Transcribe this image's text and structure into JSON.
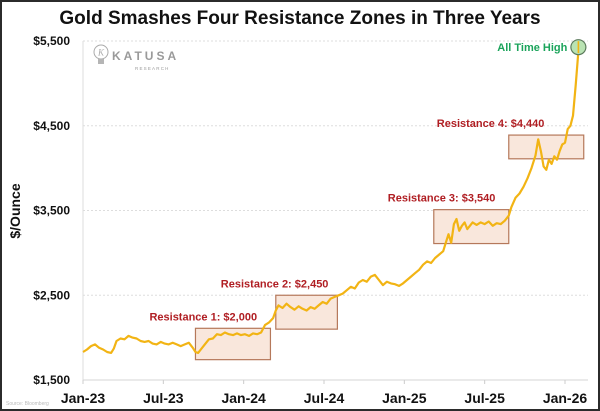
{
  "chart_data": {
    "type": "line",
    "title": "Gold Smashes Four Resistance Zones in Three Years",
    "xlabel": "",
    "ylabel": "$/Ounce",
    "ylim": [
      1500,
      5500
    ],
    "yticks": [
      {
        "value": 1500,
        "label": "$1,500"
      },
      {
        "value": 2500,
        "label": "$2,500"
      },
      {
        "value": 3500,
        "label": "$3,500"
      },
      {
        "value": 4500,
        "label": "$4,500"
      },
      {
        "value": 5500,
        "label": "$5,500"
      }
    ],
    "xlim_months": [
      0,
      37
    ],
    "xticks": [
      {
        "month": 0,
        "label": "Jan-23"
      },
      {
        "month": 6,
        "label": "Jul-23"
      },
      {
        "month": 12,
        "label": "Jan-24"
      },
      {
        "month": 18,
        "label": "Jul-24"
      },
      {
        "month": 24,
        "label": "Jan-25"
      },
      {
        "month": 30,
        "label": "Jul-25"
      },
      {
        "month": 36,
        "label": "Jan-26"
      }
    ],
    "grid": "horizontal-dashed",
    "legend": "none",
    "series": [
      {
        "name": "Gold price",
        "color": "#f2b414",
        "points": [
          [
            0.0,
            1830
          ],
          [
            0.3,
            1860
          ],
          [
            0.6,
            1900
          ],
          [
            0.9,
            1920
          ],
          [
            1.2,
            1880
          ],
          [
            1.5,
            1860
          ],
          [
            1.8,
            1830
          ],
          [
            2.1,
            1820
          ],
          [
            2.3,
            1870
          ],
          [
            2.5,
            1960
          ],
          [
            2.8,
            1990
          ],
          [
            3.1,
            1980
          ],
          [
            3.4,
            2020
          ],
          [
            3.7,
            2000
          ],
          [
            4.0,
            1990
          ],
          [
            4.3,
            1960
          ],
          [
            4.6,
            1950
          ],
          [
            4.9,
            1960
          ],
          [
            5.2,
            1930
          ],
          [
            5.5,
            1920
          ],
          [
            5.8,
            1950
          ],
          [
            6.1,
            1930
          ],
          [
            6.4,
            1920
          ],
          [
            6.7,
            1940
          ],
          [
            7.0,
            1920
          ],
          [
            7.3,
            1900
          ],
          [
            7.6,
            1920
          ],
          [
            7.9,
            1940
          ],
          [
            8.2,
            1880
          ],
          [
            8.4,
            1830
          ],
          [
            8.6,
            1820
          ],
          [
            8.8,
            1860
          ],
          [
            9.1,
            1920
          ],
          [
            9.4,
            1980
          ],
          [
            9.7,
            1990
          ],
          [
            10.0,
            2040
          ],
          [
            10.3,
            2030
          ],
          [
            10.6,
            2060
          ],
          [
            10.9,
            2040
          ],
          [
            11.2,
            2030
          ],
          [
            11.5,
            2050
          ],
          [
            11.8,
            2030
          ],
          [
            12.1,
            2040
          ],
          [
            12.4,
            2020
          ],
          [
            12.7,
            2050
          ],
          [
            13.0,
            2040
          ],
          [
            13.3,
            2060
          ],
          [
            13.6,
            2150
          ],
          [
            13.9,
            2180
          ],
          [
            14.2,
            2230
          ],
          [
            14.4,
            2320
          ],
          [
            14.6,
            2380
          ],
          [
            14.9,
            2350
          ],
          [
            15.2,
            2400
          ],
          [
            15.5,
            2360
          ],
          [
            15.8,
            2330
          ],
          [
            16.1,
            2370
          ],
          [
            16.4,
            2340
          ],
          [
            16.7,
            2320
          ],
          [
            17.0,
            2360
          ],
          [
            17.3,
            2340
          ],
          [
            17.6,
            2380
          ],
          [
            17.9,
            2420
          ],
          [
            18.2,
            2400
          ],
          [
            18.5,
            2460
          ],
          [
            18.8,
            2480
          ],
          [
            19.1,
            2500
          ],
          [
            19.4,
            2520
          ],
          [
            19.7,
            2560
          ],
          [
            20.0,
            2600
          ],
          [
            20.3,
            2580
          ],
          [
            20.6,
            2650
          ],
          [
            20.9,
            2680
          ],
          [
            21.2,
            2660
          ],
          [
            21.5,
            2720
          ],
          [
            21.8,
            2740
          ],
          [
            22.1,
            2680
          ],
          [
            22.4,
            2620
          ],
          [
            22.7,
            2660
          ],
          [
            23.0,
            2640
          ],
          [
            23.3,
            2630
          ],
          [
            23.6,
            2610
          ],
          [
            23.9,
            2640
          ],
          [
            24.2,
            2680
          ],
          [
            24.5,
            2720
          ],
          [
            24.8,
            2760
          ],
          [
            25.1,
            2800
          ],
          [
            25.4,
            2860
          ],
          [
            25.7,
            2900
          ],
          [
            26.0,
            2880
          ],
          [
            26.3,
            2940
          ],
          [
            26.6,
            2980
          ],
          [
            26.9,
            3020
          ],
          [
            27.1,
            3120
          ],
          [
            27.3,
            3220
          ],
          [
            27.5,
            3120
          ],
          [
            27.7,
            3340
          ],
          [
            27.9,
            3400
          ],
          [
            28.1,
            3260
          ],
          [
            28.3,
            3320
          ],
          [
            28.5,
            3360
          ],
          [
            28.7,
            3280
          ],
          [
            28.9,
            3320
          ],
          [
            29.1,
            3360
          ],
          [
            29.4,
            3330
          ],
          [
            29.7,
            3360
          ],
          [
            30.0,
            3340
          ],
          [
            30.3,
            3370
          ],
          [
            30.6,
            3320
          ],
          [
            30.9,
            3350
          ],
          [
            31.2,
            3340
          ],
          [
            31.5,
            3380
          ],
          [
            31.8,
            3440
          ],
          [
            32.0,
            3540
          ],
          [
            32.3,
            3650
          ],
          [
            32.6,
            3700
          ],
          [
            32.9,
            3780
          ],
          [
            33.2,
            3880
          ],
          [
            33.5,
            4000
          ],
          [
            33.8,
            4150
          ],
          [
            34.0,
            4340
          ],
          [
            34.2,
            4200
          ],
          [
            34.4,
            4020
          ],
          [
            34.6,
            3980
          ],
          [
            34.8,
            4100
          ],
          [
            35.0,
            4050
          ],
          [
            35.2,
            4140
          ],
          [
            35.4,
            4100
          ],
          [
            35.6,
            4200
          ],
          [
            35.8,
            4280
          ],
          [
            36.0,
            4300
          ],
          [
            36.2,
            4460
          ],
          [
            36.4,
            4500
          ],
          [
            36.6,
            4620
          ],
          [
            36.8,
            4980
          ],
          [
            37.0,
            5380
          ]
        ]
      }
    ],
    "annotations": [
      {
        "type": "zone",
        "name": "resistance-1",
        "label": "Resistance 1: $2,000",
        "x_range": [
          8.4,
          14.0
        ],
        "y_range": [
          1740,
          2110
        ]
      },
      {
        "type": "zone",
        "name": "resistance-2",
        "label": "Resistance 2: $2,450",
        "x_range": [
          14.4,
          19.0
        ],
        "y_range": [
          2100,
          2500
        ]
      },
      {
        "type": "zone",
        "name": "resistance-3",
        "label": "Resistance 3: $3,540",
        "x_range": [
          26.2,
          31.8
        ],
        "y_range": [
          3110,
          3510
        ]
      },
      {
        "type": "zone",
        "name": "resistance-4",
        "label": "Resistance 4: $4,440",
        "x_range": [
          31.8,
          37.4
        ],
        "y_range": [
          4110,
          4390
        ]
      },
      {
        "type": "marker",
        "name": "all-time-high",
        "label": "All Time High",
        "x": 37.0,
        "y": 5380
      }
    ],
    "colors": {
      "line": "#f2b414",
      "zone_fill": "#f9e7dc",
      "zone_stroke": "#b5785a",
      "resistance_text": "#b01e23",
      "ath_text": "#1aa35a",
      "ath_marker_fill": "#b9e3b3",
      "ath_marker_stroke": "#5b7a5b"
    }
  },
  "branding": {
    "logo_name": "KATUSA",
    "logo_sub": "RESEARCH",
    "source": "Source: Bloomberg"
  }
}
